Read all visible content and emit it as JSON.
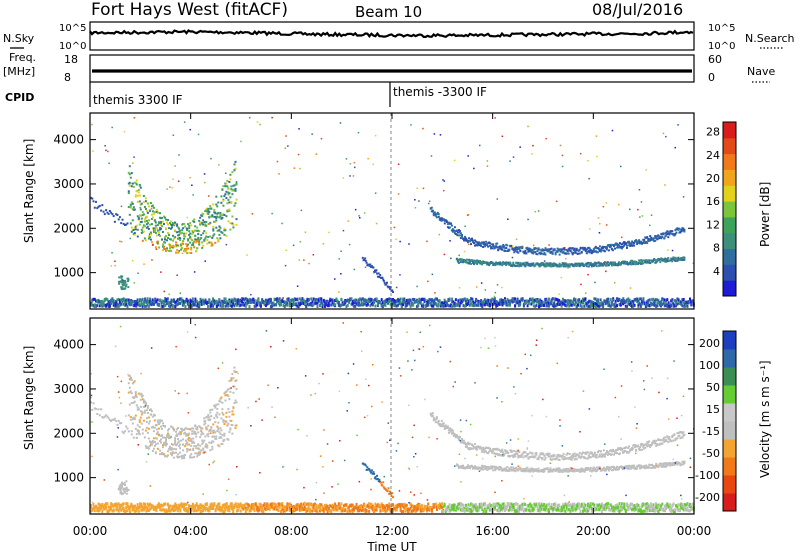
{
  "header": {
    "radar": "Fort Hays West (fitACF)",
    "beam": "Beam 10",
    "date": "08/Jul/2016"
  },
  "left_labels": {
    "nsky": "N.Sky",
    "freq": "Freq.",
    "freq_unit": "[MHz]",
    "cpid": "CPID"
  },
  "right_labels": {
    "nsearch": "N.Search",
    "nave": "Nave"
  },
  "cpid_labels": [
    "themis 3300 IF",
    "themis -3300 IF"
  ],
  "noise_ticks": [
    "10^5",
    "10^0"
  ],
  "freq_ticks": [
    "18",
    "8"
  ],
  "nave_ticks": [
    "60",
    "0"
  ],
  "colors": {
    "power_scale": [
      "#1c1cd6",
      "#2d4fb0",
      "#2f6fa0",
      "#3c8f7a",
      "#3da35a",
      "#7cc43a",
      "#e2d21a",
      "#f0a51c",
      "#f07a1a",
      "#e44a17",
      "#d91d1d"
    ],
    "velocity_scale": [
      "#d91d1d",
      "#e8480f",
      "#f07a1a",
      "#f4a531",
      "#bfbfbf",
      "#c8c8c8",
      "#66cc33",
      "#3c8f52",
      "#2e6aa8",
      "#1d3fbf"
    ]
  },
  "chart_data": [
    {
      "type": "line",
      "title": "N.Sky",
      "x": [
        "00:00",
        "04:00",
        "08:00",
        "12:00",
        "16:00",
        "20:00",
        "00:00"
      ],
      "y_ticks_left": [
        "10^5",
        "10^0"
      ],
      "y_ticks_right": [
        "10^5",
        "10^0"
      ],
      "description_series": [
        {
          "name": "N.Sky",
          "values": [
            3.3,
            3.4,
            3.5,
            3.4,
            3.2,
            3.0,
            2.9,
            2.8,
            2.8,
            2.9,
            3.0,
            3.1,
            3.2,
            3.5
          ]
        }
      ]
    },
    {
      "type": "line",
      "title": "Freq.",
      "xlabel": "Time UT",
      "ylabel": "[MHz]",
      "ylim": [
        8,
        18
      ],
      "series": [
        {
          "name": "Freq.",
          "values": [
            10.5,
            10.5,
            10.5,
            10.5,
            10.5,
            10.5,
            10.5
          ]
        },
        {
          "name": "Nave",
          "values": [
            25,
            25,
            25,
            25,
            25,
            25,
            25
          ]
        }
      ]
    },
    {
      "type": "heatmap",
      "title": "Power [dB]",
      "ylabel": "Slant Range [km]",
      "xlabel": "Time UT",
      "x_ticks": [
        "00:00",
        "04:00",
        "08:00",
        "12:00",
        "16:00",
        "20:00",
        "00:00"
      ],
      "y_ticks": [
        "1000",
        "2000",
        "3000",
        "4000"
      ],
      "ylim": [
        180,
        4600
      ],
      "colorbar_ticks": [
        "4",
        "8",
        "12",
        "16",
        "20",
        "24",
        "28"
      ],
      "colorbar_label": "Power [dB]"
    },
    {
      "type": "heatmap",
      "title": "Velocity [m s^-1]",
      "ylabel": "Slant Range [km]",
      "xlabel": "Time UT",
      "x_ticks": [
        "00:00",
        "04:00",
        "08:00",
        "12:00",
        "16:00",
        "20:00",
        "00:00"
      ],
      "y_ticks": [
        "1000",
        "2000",
        "3000",
        "4000"
      ],
      "ylim": [
        180,
        4600
      ],
      "colorbar_ticks": [
        "200",
        "100",
        "50",
        "15",
        "-15",
        "-50",
        "-100",
        "-200"
      ],
      "colorbar_label": "Velocity [m s^-1]"
    }
  ],
  "axes": {
    "x_ticks": [
      "00:00",
      "04:00",
      "08:00",
      "12:00",
      "16:00",
      "20:00",
      "00:00"
    ],
    "xlabel": "Time UT",
    "ylabel": "Slant Range [km]",
    "y_ticks": [
      "1000",
      "2000",
      "3000",
      "4000"
    ],
    "power_label": "Power [dB]",
    "power_ticks": [
      "4",
      "8",
      "12",
      "16",
      "20",
      "24",
      "28"
    ],
    "velocity_label": "Velocity [m s",
    "velocity_ticks": [
      "200",
      "100",
      "50",
      "15",
      "-15",
      "-50",
      "-100",
      "-200"
    ]
  }
}
